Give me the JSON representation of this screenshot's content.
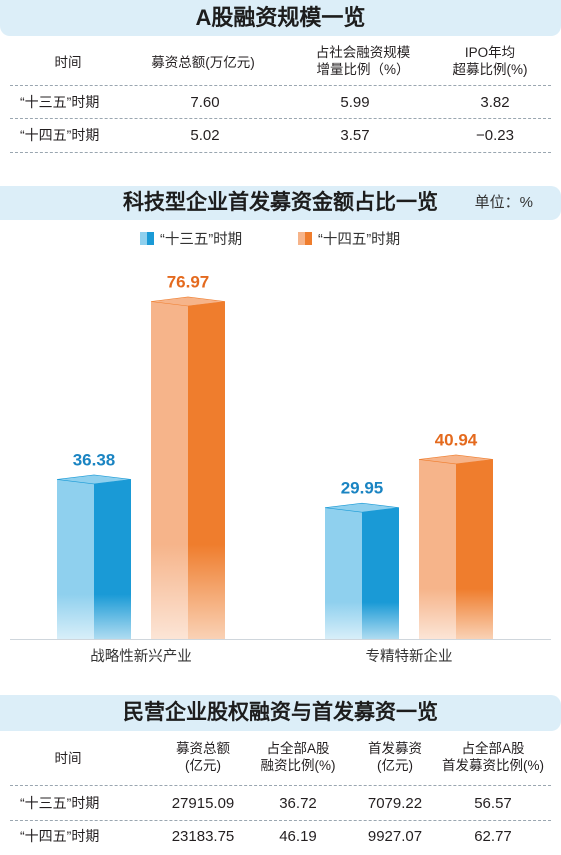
{
  "table1": {
    "title": "A股融资规模一览",
    "headers": [
      "时间",
      "募资总额(万亿元)",
      "占社会融资规模\n增量比例（%）",
      "IPO年均\n超募比例(%)"
    ],
    "rows": [
      {
        "label": "“十三五”时期",
        "values": [
          "7.60",
          "5.99",
          "3.82"
        ]
      },
      {
        "label": "“十四五”时期",
        "values": [
          "5.02",
          "3.57",
          "−0.23"
        ]
      }
    ]
  },
  "chart_section": {
    "title": "科技型企业首发募资金额占比一览",
    "unit": "单位：%"
  },
  "chart_data": {
    "type": "bar",
    "title": "科技型企业首发募资金额占比一览",
    "unit": "%",
    "categories": [
      "战略性新兴产业",
      "专精特新企业"
    ],
    "series": [
      {
        "name": "“十三五”时期",
        "values": [
          36.38,
          29.95
        ],
        "color": "#1a9ad6"
      },
      {
        "name": "“十四五”时期",
        "values": [
          76.97,
          40.94
        ],
        "color": "#ef7d2d"
      }
    ],
    "data_labels": [
      "36.38",
      "76.97",
      "29.95",
      "40.94"
    ],
    "legend": "top-center",
    "grid": false
  },
  "table2": {
    "title": "民营企业股权融资与首发募资一览",
    "headers": [
      "时间",
      "募资总额\n(亿元)",
      "占全部A股\n融资比例(%)",
      "首发募资\n(亿元)",
      "占全部A股\n首发募资比例(%)"
    ],
    "rows": [
      {
        "label": "“十三五”时期",
        "values": [
          "27915.09",
          "36.72",
          "7079.22",
          "56.57"
        ]
      },
      {
        "label": "“十四五”时期",
        "values": [
          "23183.75",
          "46.19",
          "9927.07",
          "62.77"
        ]
      }
    ]
  },
  "colors": {
    "banner_bg": "#dceef8",
    "blue_front": "#1a9ad6",
    "blue_left": "#8fd0ee",
    "orange_front": "#ef7d2d",
    "orange_left": "#f6b48a",
    "label_blue": "#1a84c2",
    "label_orange": "#e46a1e"
  }
}
